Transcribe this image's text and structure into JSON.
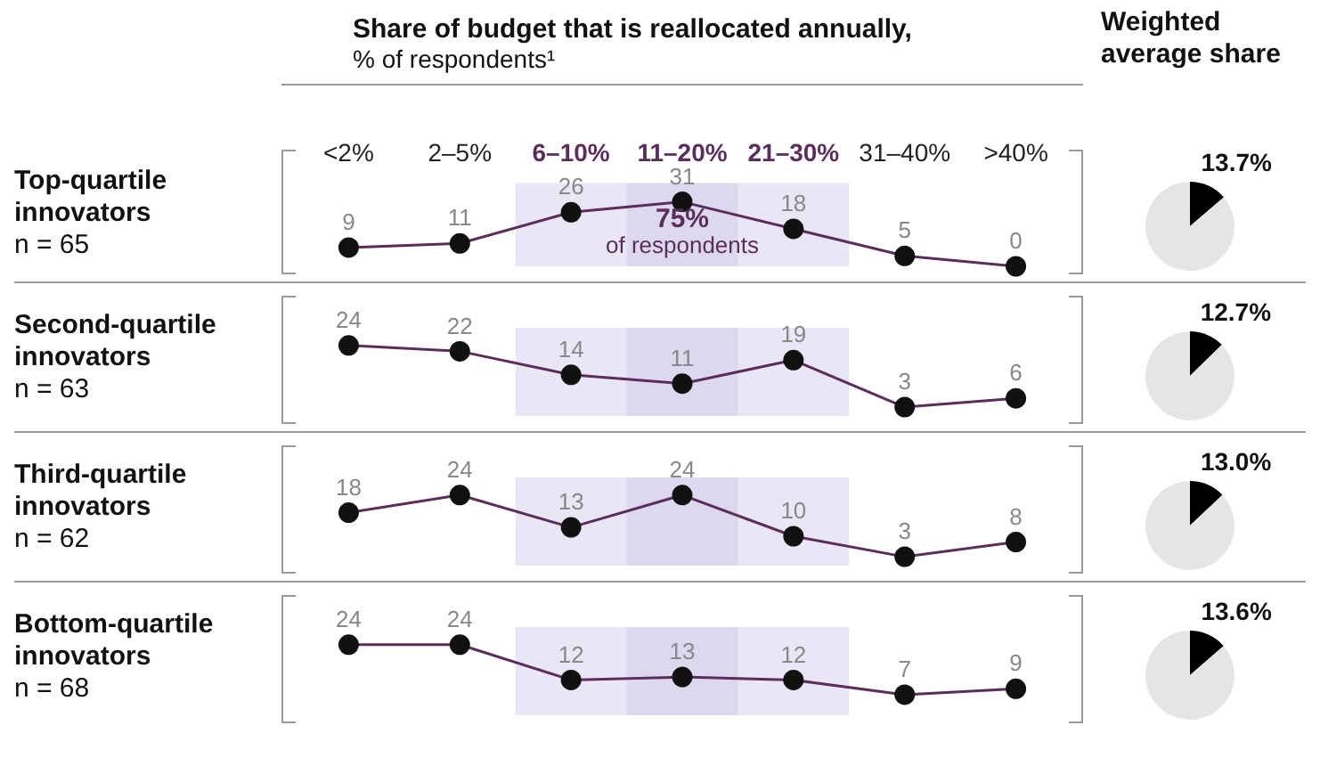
{
  "chart_data": [
    {
      "type": "line",
      "title": "Share of budget that is reallocated annually,",
      "subtitle": "% of respondents¹",
      "ylabel": "Top-quartile\ninnovators\nn = 65",
      "categories": [
        "<2%",
        "2–5%",
        "6–10%",
        "11–20%",
        "21–30%",
        "31–40%",
        ">40%"
      ],
      "series": [
        {
          "color": "#5a2d5c",
          "values": [
            9,
            11,
            26,
            31,
            18,
            5,
            0
          ]
        }
      ],
      "data_labels": true,
      "marker": "circle",
      "tick_labels": "x",
      "grid": false,
      "legend": false,
      "annotations": [
        "75% of respondents"
      ],
      "bands": [
        {
          "axis": "x",
          "from": "6–10%",
          "to": "21–30%",
          "color": "#e9e6f5"
        },
        {
          "axis": "x",
          "from": "11–20%",
          "to": "11–20%",
          "color": "#dcd8ee"
        }
      ]
    },
    {
      "type": "pie",
      "title": "Weighted average share",
      "categories": [
        null,
        null
      ],
      "values": [
        13.7,
        86.3
      ],
      "colors": [
        "#000000",
        "#e5e5e5"
      ],
      "value_labels": [
        "13.7%",
        null
      ],
      "legend": false
    },
    {
      "type": "line",
      "ylabel": "Second-quartile\ninnovators\nn = 63",
      "categories": [
        "<2%",
        "2–5%",
        "6–10%",
        "11–20%",
        "21–30%",
        "31–40%",
        ">40%"
      ],
      "series": [
        {
          "color": "#5a2d5c",
          "values": [
            24,
            22,
            14,
            11,
            19,
            3,
            6
          ]
        }
      ],
      "data_labels": true,
      "marker": "circle",
      "tick_labels": false,
      "grid": false,
      "legend": false,
      "bands": [
        {
          "axis": "x",
          "from": "6–10%",
          "to": "21–30%",
          "color": "#e9e6f5"
        },
        {
          "axis": "x",
          "from": "11–20%",
          "to": "11–20%",
          "color": "#dcd8ee"
        }
      ]
    },
    {
      "type": "pie",
      "categories": [
        null,
        null
      ],
      "values": [
        12.7,
        87.3
      ],
      "colors": [
        "#000000",
        "#e5e5e5"
      ],
      "value_labels": [
        "12.7%",
        null
      ],
      "legend": false
    },
    {
      "type": "line",
      "ylabel": "Third-quartile\ninnovators\nn = 62",
      "categories": [
        "<2%",
        "2–5%",
        "6–10%",
        "11–20%",
        "21–30%",
        "31–40%",
        ">40%"
      ],
      "series": [
        {
          "color": "#5a2d5c",
          "values": [
            18,
            24,
            13,
            24,
            10,
            3,
            8
          ]
        }
      ],
      "data_labels": true,
      "marker": "circle",
      "tick_labels": false,
      "grid": false,
      "legend": false,
      "bands": [
        {
          "axis": "x",
          "from": "6–10%",
          "to": "21–30%",
          "color": "#e9e6f5"
        },
        {
          "axis": "x",
          "from": "11–20%",
          "to": "11–20%",
          "color": "#dcd8ee"
        }
      ]
    },
    {
      "type": "pie",
      "categories": [
        null,
        null
      ],
      "values": [
        13.0,
        87.0
      ],
      "colors": [
        "#000000",
        "#e5e5e5"
      ],
      "value_labels": [
        "13.0%",
        null
      ],
      "legend": false
    },
    {
      "type": "line",
      "ylabel": "Bottom-quartile\ninnovators\nn = 68",
      "categories": [
        "<2%",
        "2–5%",
        "6–10%",
        "11–20%",
        "21–30%",
        "31–40%",
        ">40%"
      ],
      "series": [
        {
          "color": "#5a2d5c",
          "values": [
            24,
            24,
            12,
            13,
            12,
            7,
            9
          ]
        }
      ],
      "data_labels": true,
      "marker": "circle",
      "tick_labels": false,
      "grid": false,
      "legend": false,
      "bands": [
        {
          "axis": "x",
          "from": "6–10%",
          "to": "21–30%",
          "color": "#e9e6f5"
        },
        {
          "axis": "x",
          "from": "11–20%",
          "to": "11–20%",
          "color": "#dcd8ee"
        }
      ]
    },
    {
      "type": "pie",
      "categories": [
        null,
        null
      ],
      "values": [
        13.6,
        86.4
      ],
      "colors": [
        "#000000",
        "#e5e5e5"
      ],
      "value_labels": [
        "13.6%",
        null
      ],
      "legend": false
    }
  ]
}
